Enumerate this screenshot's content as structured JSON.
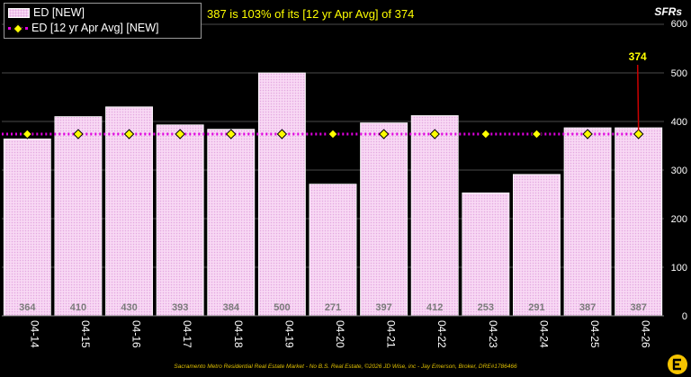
{
  "chart_data": {
    "type": "bar",
    "title": "387 is 103% of its [12 yr Apr Avg] of 374",
    "ylabel": "SFRs",
    "xlabel": "",
    "categories": [
      "04-14",
      "04-15",
      "04-16",
      "04-17",
      "04-18",
      "04-19",
      "04-20",
      "04-21",
      "04-22",
      "04-23",
      "04-24",
      "04-25",
      "04-26"
    ],
    "series": [
      {
        "name": "ED [NEW]",
        "type": "bar",
        "values": [
          364,
          410,
          430,
          393,
          384,
          500,
          271,
          397,
          412,
          253,
          291,
          387,
          387
        ]
      },
      {
        "name": "ED [12 yr Apr Avg] [NEW]",
        "type": "line",
        "values": [
          374,
          374,
          374,
          374,
          374,
          374,
          374,
          374,
          374,
          374,
          374,
          374,
          374
        ]
      }
    ],
    "data_labels": [
      "364",
      "410",
      "430",
      "393",
      "384",
      "500",
      "271",
      "397",
      "412",
      "253",
      "291",
      "387",
      "387"
    ],
    "callout": "374",
    "ylim": [
      0,
      600
    ],
    "yticks": [
      "0",
      "100",
      "200",
      "300",
      "400",
      "500",
      "600"
    ],
    "grid": true,
    "legend_position": "top-left"
  },
  "footer": "Sacramento Metro Residential Real Estate Market - No B.S. Real Estate, ©2026 JD Wise, inc - Jay Emerson, Broker, DRE#1786466",
  "colors": {
    "background": "#000000",
    "bar_fill": "#f8d8f4",
    "bar_pattern": "#e3a8e0",
    "avg_line": "#e000e0",
    "marker": "#ffff00",
    "title": "#ffff00",
    "callout_line": "#cc0000",
    "gridline": "#4a4a4a",
    "data_label": "#7a7a7a",
    "axis_text": "#ffffff"
  },
  "icons": {
    "logo": "brand-logo-icon"
  }
}
